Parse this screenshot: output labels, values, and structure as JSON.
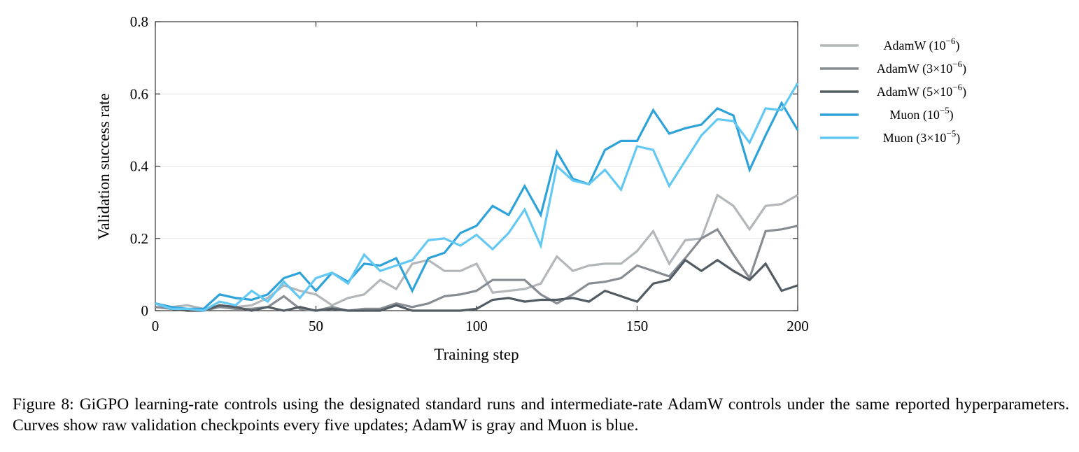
{
  "chart_data": {
    "type": "line",
    "xlabel": "Training step",
    "ylabel": "Validation success rate",
    "xlim": [
      0,
      200
    ],
    "ylim": [
      0,
      0.8
    ],
    "xticks": [
      0,
      50,
      100,
      150,
      200
    ],
    "yticks": [
      0,
      0.2,
      0.4,
      0.6,
      0.8
    ],
    "ytick_labels": [
      "0",
      "0.2",
      "0.4",
      "0.6",
      "0.8"
    ],
    "grid": "horizontal",
    "legend_position": "right",
    "x": [
      0,
      5,
      10,
      15,
      20,
      25,
      30,
      35,
      40,
      45,
      50,
      55,
      60,
      65,
      70,
      75,
      80,
      85,
      90,
      95,
      100,
      105,
      110,
      115,
      120,
      125,
      130,
      135,
      140,
      145,
      150,
      155,
      160,
      165,
      170,
      175,
      180,
      185,
      190,
      195,
      200
    ],
    "series": [
      {
        "name_base": "AdamW (10",
        "name_exp": "−6",
        "name_tail": ")",
        "color": "#b4b7ba",
        "values": [
          0.02,
          0.01,
          0.015,
          0.005,
          0.01,
          0.01,
          0.015,
          0.035,
          0.07,
          0.055,
          0.045,
          0.015,
          0.035,
          0.045,
          0.085,
          0.06,
          0.13,
          0.14,
          0.11,
          0.11,
          0.13,
          0.05,
          0.055,
          0.06,
          0.075,
          0.15,
          0.11,
          0.125,
          0.13,
          0.13,
          0.165,
          0.22,
          0.13,
          0.195,
          0.2,
          0.32,
          0.29,
          0.225,
          0.29,
          0.295,
          0.32
        ]
      },
      {
        "name_base": "AdamW (3×10",
        "name_exp": "−6",
        "name_tail": ")",
        "color": "#878d93",
        "values": [
          0.01,
          0.005,
          0.0,
          0.0,
          0.01,
          0.005,
          0.005,
          0.01,
          0.04,
          0.005,
          0.0,
          0.01,
          0.0,
          0.005,
          0.005,
          0.02,
          0.01,
          0.02,
          0.04,
          0.045,
          0.055,
          0.085,
          0.085,
          0.085,
          0.045,
          0.02,
          0.045,
          0.075,
          0.08,
          0.09,
          0.125,
          0.11,
          0.095,
          0.145,
          0.2,
          0.225,
          0.155,
          0.09,
          0.22,
          0.225,
          0.235
        ]
      },
      {
        "name_base": "AdamW (5×10",
        "name_exp": "−6",
        "name_tail": ")",
        "color": "#545c63",
        "values": [
          0.02,
          0.005,
          0.0,
          0.0,
          0.015,
          0.01,
          0.0,
          0.01,
          0.0,
          0.01,
          0.0,
          0.005,
          0.0,
          0.0,
          0.0,
          0.015,
          0.0,
          0.0,
          0.0,
          0.0,
          0.005,
          0.03,
          0.035,
          0.025,
          0.03,
          0.03,
          0.035,
          0.025,
          0.055,
          0.04,
          0.025,
          0.075,
          0.085,
          0.14,
          0.11,
          0.14,
          0.11,
          0.085,
          0.13,
          0.055,
          0.07
        ]
      },
      {
        "name_base": "Muon (10",
        "name_exp": "−5",
        "name_tail": ")",
        "color": "#2ea3d9",
        "values": [
          0.02,
          0.01,
          0.005,
          0.005,
          0.045,
          0.035,
          0.03,
          0.045,
          0.09,
          0.105,
          0.055,
          0.105,
          0.08,
          0.13,
          0.125,
          0.145,
          0.055,
          0.145,
          0.16,
          0.215,
          0.235,
          0.29,
          0.265,
          0.345,
          0.265,
          0.44,
          0.365,
          0.35,
          0.445,
          0.47,
          0.47,
          0.555,
          0.49,
          0.505,
          0.515,
          0.56,
          0.54,
          0.39,
          0.485,
          0.575,
          0.5
        ]
      },
      {
        "name_base": "Muon (3×10",
        "name_exp": "−5",
        "name_tail": ")",
        "color": "#63c8f2",
        "values": [
          0.02,
          0.005,
          0.005,
          0.0,
          0.025,
          0.015,
          0.055,
          0.025,
          0.08,
          0.035,
          0.09,
          0.105,
          0.075,
          0.155,
          0.11,
          0.125,
          0.14,
          0.195,
          0.2,
          0.18,
          0.21,
          0.17,
          0.215,
          0.28,
          0.18,
          0.4,
          0.36,
          0.35,
          0.39,
          0.335,
          0.455,
          0.445,
          0.345,
          0.415,
          0.485,
          0.53,
          0.525,
          0.465,
          0.56,
          0.555,
          0.63
        ]
      }
    ]
  },
  "caption": {
    "line1": "Figure 8: GiGPO learning-rate controls using the designated standard runs and intermediate-rate AdamW controls under the",
    "line2": "same reported hyperparameters. Curves show raw validation checkpoints every five updates; AdamW is gray and Muon is blue."
  }
}
